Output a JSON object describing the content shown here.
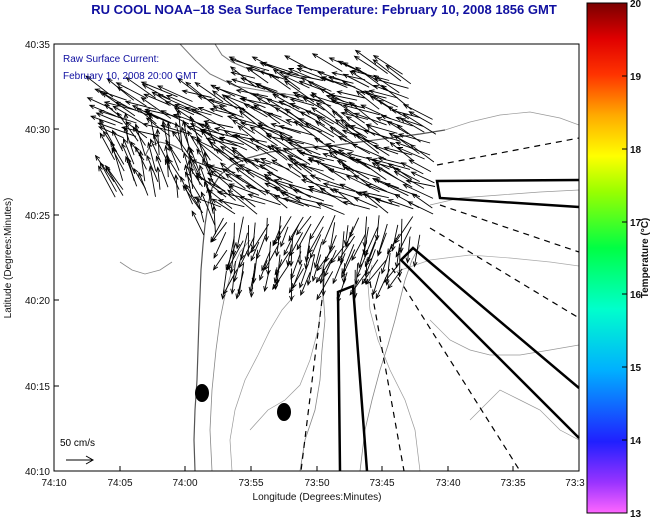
{
  "title": "RU COOL  NOAA–18  Sea Surface Temperature:  February 10, 2008 1856 GMT",
  "annotation_line1": "Raw Surface Current:",
  "annotation_line2": "February 10, 2008 20:00 GMT",
  "scale_label": "50 cm/s",
  "x_axis_label": "Longitude (Degrees:Minutes)",
  "y_axis_label": "Latitude (Degrees:Minutes)",
  "x_ticks": [
    "74:10",
    "74:05",
    "74:00",
    "73:55",
    "73:50",
    "73:45",
    "73:40",
    "73:35",
    "73:3"
  ],
  "y_ticks": [
    "40:35",
    "40:30",
    "40:25",
    "40:20",
    "40:15",
    "40:10"
  ],
  "colorbar": {
    "label": "Temperature (°C)",
    "min": 13,
    "max": 20,
    "ticks": [
      "20",
      "19",
      "18",
      "17",
      "16",
      "15",
      "14",
      "13"
    ]
  },
  "colors": {
    "title": "#1010a0",
    "contour": "#888888",
    "arrows": "#000000"
  }
}
